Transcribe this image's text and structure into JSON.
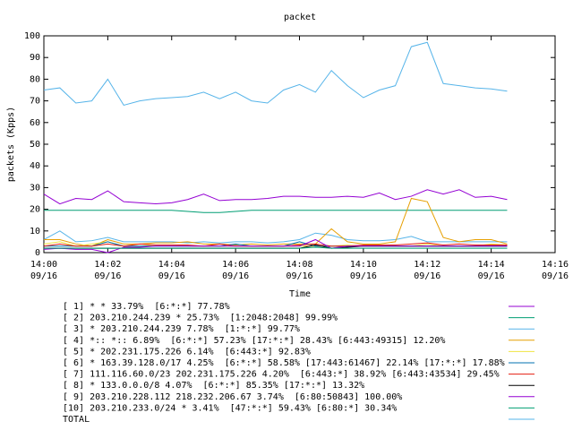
{
  "chart_data": {
    "type": "line",
    "title": "packet",
    "x_label": "Time",
    "y_label": "packets (Kpps)",
    "x": [
      "14:00:00",
      "14:00:30",
      "14:01:00",
      "14:01:30",
      "14:02:00",
      "14:02:30",
      "14:03:00",
      "14:03:30",
      "14:04:00",
      "14:04:30",
      "14:05:00",
      "14:05:30",
      "14:06:00",
      "14:06:30",
      "14:07:00",
      "14:07:30",
      "14:08:00",
      "14:08:30",
      "14:09:00",
      "14:09:30",
      "14:10:00",
      "14:10:30",
      "14:11:00",
      "14:11:30",
      "14:12:00",
      "14:12:30",
      "14:13:00",
      "14:13:30",
      "14:14:00",
      "14:14:30"
    ],
    "xlim": [
      "14:00",
      "14:16"
    ],
    "xticks": [
      {
        "value": "14:00",
        "label": [
          "14:00",
          "09/16"
        ]
      },
      {
        "value": "14:02",
        "label": [
          "14:02",
          "09/16"
        ]
      },
      {
        "value": "14:04",
        "label": [
          "14:04",
          "09/16"
        ]
      },
      {
        "value": "14:06",
        "label": [
          "14:06",
          "09/16"
        ]
      },
      {
        "value": "14:08",
        "label": [
          "14:08",
          "09/16"
        ]
      },
      {
        "value": "14:10",
        "label": [
          "14:10",
          "09/16"
        ]
      },
      {
        "value": "14:12",
        "label": [
          "14:12",
          "09/16"
        ]
      },
      {
        "value": "14:14",
        "label": [
          "14:14",
          "09/16"
        ]
      },
      {
        "value": "14:16",
        "label": [
          "14:16",
          "09/16"
        ]
      }
    ],
    "ylim": [
      0,
      100
    ],
    "yticks": [
      0,
      10,
      20,
      30,
      40,
      50,
      60,
      70,
      80,
      90,
      100
    ],
    "grid": false,
    "series": [
      {
        "name": "[ 1] * * 33.79%  [6:*:*] 77.78%",
        "color": "#9400d3",
        "values": [
          27,
          22.5,
          25,
          24.5,
          28.5,
          23.5,
          23,
          22.5,
          23,
          24.5,
          27,
          24,
          24.5,
          24.5,
          25,
          26,
          26,
          25.5,
          25.5,
          26,
          25.5,
          27.5,
          24.5,
          26,
          29,
          27,
          29,
          25.5,
          26,
          24.5
        ]
      },
      {
        "name": "[ 2] 203.210.244.239 * 25.73%  [1:2048:2048] 99.99%",
        "color": "#009e73",
        "values": [
          19.5,
          19.5,
          19.5,
          19.5,
          19.5,
          19.5,
          19.5,
          19.5,
          19.5,
          19,
          18.5,
          18.5,
          19,
          19.5,
          19.5,
          19.5,
          19.5,
          19.5,
          19.5,
          19.5,
          19.5,
          19.5,
          19.5,
          19.5,
          19.5,
          19.5,
          19.5,
          19.5,
          19.5,
          19.5
        ]
      },
      {
        "name": "[ 3] * 203.210.244.239 7.78%  [1:*:*] 99.77%",
        "color": "#56b4e9",
        "values": [
          6,
          10,
          5,
          5.5,
          7,
          5,
          5,
          5,
          5,
          4.5,
          5,
          4.5,
          5,
          5,
          4.5,
          5,
          6,
          9,
          8,
          6,
          5.5,
          5.5,
          6,
          7.5,
          5,
          5,
          5,
          5,
          5,
          5
        ]
      },
      {
        "name": "[ 4] *:: *:: 6.89%  [6:*:*] 57.23% [17:*:*] 28.43% [6:443:49315] 12.20%",
        "color": "#e69f00",
        "values": [
          6,
          6,
          4,
          3,
          6,
          4,
          4,
          4.5,
          4.5,
          5,
          4,
          4,
          3.5,
          4,
          3.5,
          4,
          4,
          4,
          11,
          5,
          4,
          4,
          5,
          25,
          23.5,
          7,
          5,
          6,
          6,
          4
        ]
      },
      {
        "name": "[ 5] * 202.231.175.226 6.14%  [6:443:*] 92.83%",
        "color": "#f0e442",
        "values": [
          4,
          5,
          3,
          4,
          5,
          3,
          3,
          3.5,
          3.5,
          3,
          3,
          3,
          3,
          3,
          3,
          3,
          3,
          3,
          3,
          3.5,
          3,
          3,
          3,
          3,
          4,
          3,
          3,
          3,
          4,
          3.5
        ]
      },
      {
        "name": "[ 6] * 163.39.128.0/17 4.25%  [6:*:*] 58.58% [17:443:61467] 22.14% [17:*:*] 17.88%",
        "color": "#0072b2",
        "values": [
          3,
          3,
          3,
          3,
          5,
          3,
          3,
          3,
          3,
          3,
          3,
          3,
          4,
          3,
          3,
          3,
          5,
          3,
          3,
          3,
          3,
          3,
          3,
          3,
          3,
          3,
          3,
          3,
          3,
          3
        ]
      },
      {
        "name": "[ 7] 111.116.60.0/23 202.231.175.226 4.20%  [6:443:*] 38.92% [6:443:43534] 29.45%",
        "color": "#e51e10",
        "values": [
          3,
          4,
          3,
          3,
          4,
          3,
          4,
          3.5,
          3.5,
          3.5,
          3,
          4,
          3,
          3,
          3,
          3,
          3.5,
          4,
          3,
          3,
          3.5,
          3.5,
          3.5,
          4,
          4.5,
          3.5,
          4,
          3.5,
          3.5,
          3.5
        ]
      },
      {
        "name": "[ 8] * 133.0.0.0/8 4.07%  [6:*:*] 85.35% [17:*:*] 13.32%",
        "color": "#000000",
        "values": [
          2,
          2,
          2,
          2,
          2,
          2,
          2,
          2,
          2,
          2,
          2,
          2,
          2,
          2,
          2,
          2,
          2,
          3.5,
          2,
          2.5,
          3,
          3,
          3,
          3,
          3,
          3,
          3,
          3,
          3,
          3
        ]
      },
      {
        "name": "[ 9] 203.210.228.112 218.232.206.67 3.74%  [6:80:50843] 100.00%",
        "color": "#9400d3",
        "values": [
          1.5,
          2,
          1.5,
          1.5,
          0,
          2.5,
          2.5,
          3,
          3,
          3,
          3,
          3,
          3,
          3,
          3,
          3,
          3,
          6,
          2,
          3,
          3,
          3,
          3,
          3,
          3,
          3,
          3,
          3,
          3,
          3
        ]
      },
      {
        "name": "[10] 203.210.233.0/24 * 3.41%  [47:*:*] 59.43% [6:80:*] 30.34%",
        "color": "#009e73",
        "values": [
          2,
          2,
          2,
          2,
          2,
          2,
          2,
          2,
          2,
          2,
          2,
          2,
          2,
          2,
          2,
          2,
          2,
          2.5,
          2,
          2,
          2,
          2,
          2,
          2,
          2,
          2,
          2,
          2,
          2,
          2
        ]
      },
      {
        "name": "TOTAL",
        "color": "#56b4e9",
        "values": [
          75,
          76,
          69,
          70,
          80,
          68,
          70,
          71,
          71.5,
          72,
          74,
          71,
          74,
          70,
          69,
          75,
          77.5,
          74,
          84,
          77,
          71.5,
          75,
          77,
          95,
          97,
          78,
          77,
          76,
          75.5,
          74.5
        ]
      }
    ]
  }
}
